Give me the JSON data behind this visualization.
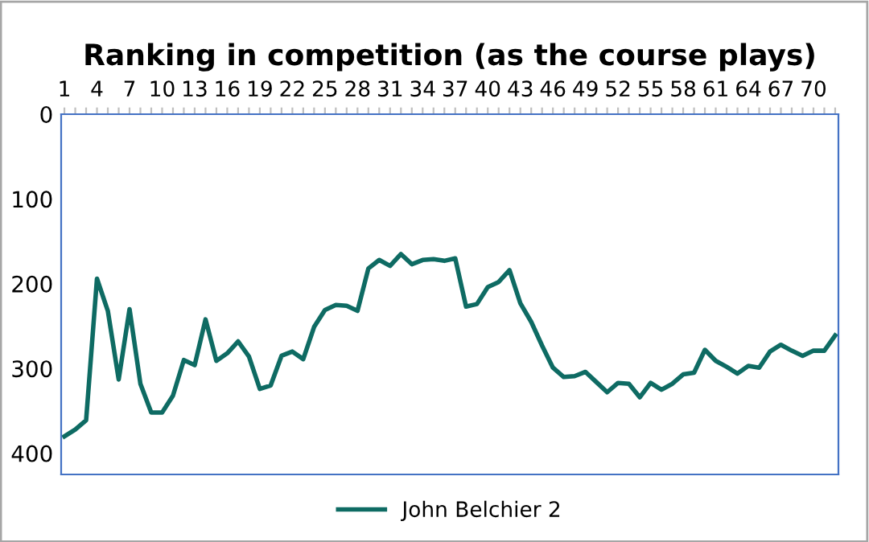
{
  "chart_data": {
    "type": "line",
    "title": "Ranking in competition (as the course plays)",
    "categories": [
      "1",
      null,
      null,
      "4",
      null,
      null,
      "7",
      null,
      null,
      "10",
      null,
      null,
      "13",
      null,
      null,
      "16",
      null,
      null,
      "19",
      null,
      null,
      "22",
      null,
      null,
      "25",
      null,
      null,
      "28",
      null,
      null,
      "31",
      null,
      null,
      "34",
      null,
      null,
      "37",
      null,
      null,
      "40",
      null,
      null,
      "43",
      null,
      null,
      "46",
      null,
      null,
      "49",
      null,
      null,
      "52",
      null,
      null,
      "55",
      null,
      null,
      "58",
      null,
      null,
      "61",
      null,
      null,
      "64",
      null,
      null,
      "67",
      null,
      null,
      "70",
      null,
      null
    ],
    "series": [
      {
        "name": "John Belchier 2",
        "color": "#0e6b63",
        "values": [
          380,
          372,
          361,
          194,
          232,
          313,
          230,
          318,
          352,
          352,
          332,
          290,
          296,
          242,
          291,
          282,
          268,
          286,
          324,
          320,
          285,
          280,
          289,
          251,
          231,
          225,
          226,
          232,
          182,
          172,
          179,
          165,
          177,
          172,
          171,
          173,
          170,
          227,
          224,
          204,
          198,
          184,
          223,
          245,
          273,
          299,
          310,
          309,
          304,
          316,
          328,
          317,
          318,
          334,
          317,
          325,
          318,
          307,
          305,
          278,
          291,
          298,
          306,
          297,
          299,
          280,
          272,
          279,
          285,
          279,
          279,
          261
        ]
      }
    ],
    "ylim": [
      425,
      0
    ],
    "yticks": [
      0,
      100,
      200,
      300,
      400
    ],
    "grid": false,
    "legend": "bottom",
    "marker": "none",
    "line_style": "solid"
  }
}
